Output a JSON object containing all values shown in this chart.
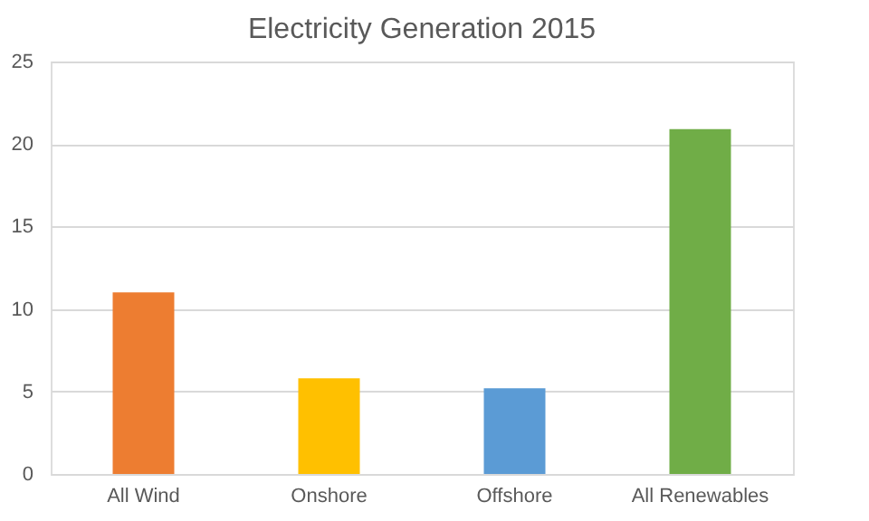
{
  "chart_data": {
    "type": "bar",
    "title": "Electricity Generation 2015",
    "categories": [
      "All Wind",
      "Onshore",
      "Offshore",
      "All Renewables"
    ],
    "values": [
      11,
      5.8,
      5.2,
      20.9
    ],
    "colors": [
      "#ed7d31",
      "#ffc000",
      "#5b9bd5",
      "#70ad47"
    ],
    "ylim": [
      0,
      25
    ],
    "yticks": [
      0,
      5,
      10,
      15,
      20,
      25
    ],
    "grid": "y"
  }
}
